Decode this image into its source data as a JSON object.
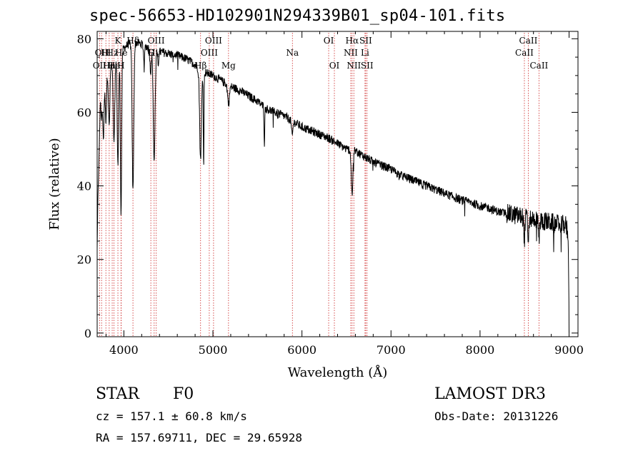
{
  "title": "spec-56653-HD102901N294339B01_sp04-101.fits",
  "info": {
    "class_label": "STAR",
    "subclass_label": "F0",
    "survey": "LAMOST DR3",
    "cz": "cz = 157.1 ± 60.8 km/s",
    "obs_date": "Obs-Date: 20131226",
    "radec": "RA = 157.69711, DEC =  29.65928"
  },
  "chart_data": {
    "type": "line",
    "title": "spec-56653-HD102901N294339B01_sp04-101.fits",
    "xlabel": "Wavelength (Å)",
    "ylabel": "Flux (relative)",
    "xlim": [
      3700,
      9100
    ],
    "ylim": [
      -1,
      82
    ],
    "xticks": [
      4000,
      5000,
      6000,
      7000,
      8000,
      9000
    ],
    "yticks": [
      0,
      20,
      40,
      60,
      80
    ],
    "grid": false,
    "continuum": [
      [
        3700,
        23
      ],
      [
        3720,
        60
      ],
      [
        3760,
        66
      ],
      [
        3800,
        70
      ],
      [
        3850,
        73
      ],
      [
        3900,
        75
      ],
      [
        3950,
        76
      ],
      [
        4000,
        77.5
      ],
      [
        4050,
        78.5
      ],
      [
        4100,
        78.5
      ],
      [
        4150,
        79
      ],
      [
        4200,
        78.5
      ],
      [
        4250,
        78
      ],
      [
        4300,
        77
      ],
      [
        4400,
        76.5
      ],
      [
        4500,
        76
      ],
      [
        4600,
        75.5
      ],
      [
        4700,
        74.5
      ],
      [
        4800,
        73
      ],
      [
        4850,
        71.5
      ],
      [
        4950,
        70.5
      ],
      [
        5000,
        70
      ],
      [
        5100,
        68.5
      ],
      [
        5200,
        67
      ],
      [
        5300,
        66
      ],
      [
        5400,
        64.5
      ],
      [
        5500,
        63
      ],
      [
        5600,
        61
      ],
      [
        5700,
        60
      ],
      [
        5800,
        59
      ],
      [
        5900,
        57.5
      ],
      [
        6000,
        56
      ],
      [
        6100,
        55
      ],
      [
        6200,
        54
      ],
      [
        6300,
        53
      ],
      [
        6400,
        51.5
      ],
      [
        6500,
        50
      ],
      [
        6600,
        49.5
      ],
      [
        6700,
        48
      ],
      [
        6800,
        46.5
      ],
      [
        6900,
        45.5
      ],
      [
        7000,
        44.5
      ],
      [
        7100,
        43
      ],
      [
        7200,
        42
      ],
      [
        7300,
        41
      ],
      [
        7400,
        40
      ],
      [
        7500,
        39
      ],
      [
        7600,
        38
      ],
      [
        7700,
        37
      ],
      [
        7800,
        36
      ],
      [
        7900,
        35.5
      ],
      [
        8000,
        34.5
      ],
      [
        8100,
        34
      ],
      [
        8200,
        33
      ],
      [
        8300,
        32.5
      ],
      [
        8400,
        32
      ],
      [
        8500,
        31.5
      ],
      [
        8600,
        31
      ],
      [
        8700,
        30.5
      ],
      [
        8800,
        30
      ],
      [
        8900,
        29.5
      ],
      [
        8960,
        29.5
      ],
      [
        8990,
        27
      ],
      [
        9000,
        4
      ]
    ],
    "absorption_features": [
      {
        "center": 3720,
        "depth": 12,
        "width": 6
      },
      {
        "center": 3750,
        "depth": 6,
        "width": 6
      },
      {
        "center": 3770,
        "depth": 14,
        "width": 7
      },
      {
        "center": 3798,
        "depth": 12,
        "width": 7
      },
      {
        "center": 3835,
        "depth": 16,
        "width": 8
      },
      {
        "center": 3889,
        "depth": 22,
        "width": 9
      },
      {
        "center": 3933,
        "depth": 30,
        "width": 8
      },
      {
        "center": 3968,
        "depth": 44,
        "width": 7
      },
      {
        "center": 4102,
        "depth": 40,
        "width": 9
      },
      {
        "center": 4227,
        "depth": 5,
        "width": 6
      },
      {
        "center": 4300,
        "depth": 6,
        "width": 7
      },
      {
        "center": 4340,
        "depth": 30,
        "width": 10
      },
      {
        "center": 4384,
        "depth": 4,
        "width": 6
      },
      {
        "center": 4861,
        "depth": 24,
        "width": 10
      },
      {
        "center": 4896,
        "depth": 25,
        "width": 4
      },
      {
        "center": 5175,
        "depth": 5,
        "width": 10
      },
      {
        "center": 5578,
        "depth": 10,
        "width": 4
      },
      {
        "center": 5890,
        "depth": 4,
        "width": 8
      },
      {
        "center": 6563,
        "depth": 12,
        "width": 9
      },
      {
        "center": 8498,
        "depth": 6,
        "width": 6
      },
      {
        "center": 8542,
        "depth": 6,
        "width": 6
      },
      {
        "center": 8662,
        "depth": 5,
        "width": 6
      }
    ],
    "noise_amplitude": 1.2,
    "spectral_lines": [
      {
        "wavelength": 3727,
        "label": "OII",
        "row": 3
      },
      {
        "wavelength": 3750,
        "label": "OII",
        "row": 2
      },
      {
        "wavelength": 3798,
        "label": "Hl",
        "row": 2
      },
      {
        "wavelength": 3835,
        "label": "Hh",
        "row": 3
      },
      {
        "wavelength": 3869,
        "label": "Hz",
        "row": 2
      },
      {
        "wavelength": 3889,
        "label": "He",
        "row": 3
      },
      {
        "wavelength": 3933,
        "label": "K",
        "row": 1
      },
      {
        "wavelength": 3968,
        "label": "H",
        "row": 3
      },
      {
        "wavelength": 3970,
        "label": "He",
        "row": 2
      },
      {
        "wavelength": 4102,
        "label": "Hδ",
        "row": 1
      },
      {
        "wavelength": 4303,
        "label": "G",
        "row": 2
      },
      {
        "wavelength": 4340,
        "label": "Hγ",
        "row": 2
      },
      {
        "wavelength": 4363,
        "label": "OIII",
        "row": 1
      },
      {
        "wavelength": 4861,
        "label": "Hβ",
        "row": 3
      },
      {
        "wavelength": 4959,
        "label": "OIII",
        "row": 2
      },
      {
        "wavelength": 5007,
        "label": "OIII",
        "row": 1
      },
      {
        "wavelength": 5175,
        "label": "Mg",
        "row": 3
      },
      {
        "wavelength": 5893,
        "label": "Na",
        "row": 2
      },
      {
        "wavelength": 6300,
        "label": "OI",
        "row": 1
      },
      {
        "wavelength": 6364,
        "label": "OI",
        "row": 3
      },
      {
        "wavelength": 6548,
        "label": "NII",
        "row": 2
      },
      {
        "wavelength": 6563,
        "label": "Hα",
        "row": 1
      },
      {
        "wavelength": 6583,
        "label": "NII",
        "row": 3
      },
      {
        "wavelength": 6708,
        "label": "Li",
        "row": 2
      },
      {
        "wavelength": 6716,
        "label": "SII",
        "row": 1
      },
      {
        "wavelength": 6731,
        "label": "SII",
        "row": 3
      },
      {
        "wavelength": 8498,
        "label": "CaII",
        "row": 2
      },
      {
        "wavelength": 8542,
        "label": "CaII",
        "row": 1
      },
      {
        "wavelength": 8662,
        "label": "CaII",
        "row": 3
      }
    ]
  }
}
